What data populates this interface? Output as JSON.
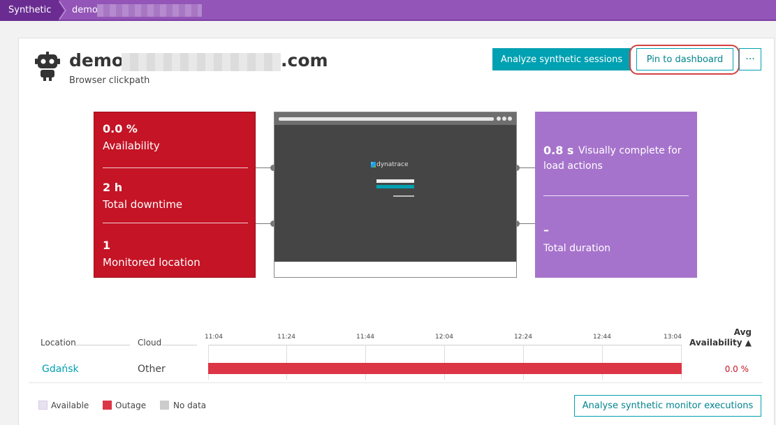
{
  "breadcrumb": {
    "root": "Synthetic",
    "current": "demo"
  },
  "monitor": {
    "title_prefix": "demo.",
    "title_suffix": ".com",
    "type": "Browser clickpath"
  },
  "actions": {
    "analyze_label": "Analyze synthetic sessions",
    "pin_label": "Pin to dashboard",
    "more_label": "···"
  },
  "kpis": {
    "availability_value": "0.0 %",
    "availability_label": "Availability",
    "downtime_value": "2 h",
    "downtime_label": "Total downtime",
    "locations_value": "1",
    "locations_label": "Monitored location"
  },
  "performance": {
    "visually_complete_value": "0.8 s",
    "visually_complete_label_line1": "Visually complete for",
    "visually_complete_label_line2": "load actions",
    "total_duration_value": "–",
    "total_duration_label": "Total duration"
  },
  "preview": {
    "logo_text": "dynatrace"
  },
  "table": {
    "headers": {
      "location": "Location",
      "cloud": "Cloud",
      "avg_line1": "Avg",
      "avg_line2": "Availability ▲"
    },
    "time_ticks": [
      "11:04",
      "11:24",
      "11:44",
      "12:04",
      "12:24",
      "12:44",
      "13:04"
    ],
    "rows": [
      {
        "location": "Gdańsk",
        "cloud": "Other",
        "avg_availability": "0.0 %",
        "status": "outage"
      }
    ]
  },
  "legend": [
    {
      "label": "Available",
      "color": "#e8e2f0"
    },
    {
      "label": "Outage",
      "color": "#dc3545"
    },
    {
      "label": "No data",
      "color": "#cccccc"
    }
  ],
  "footer": {
    "executions_label": "Analyse synthetic monitor executions"
  },
  "colors": {
    "accent": "#00a1b2",
    "outage": "#c41425",
    "performance": "#a673cc",
    "header": "#9355b7"
  }
}
